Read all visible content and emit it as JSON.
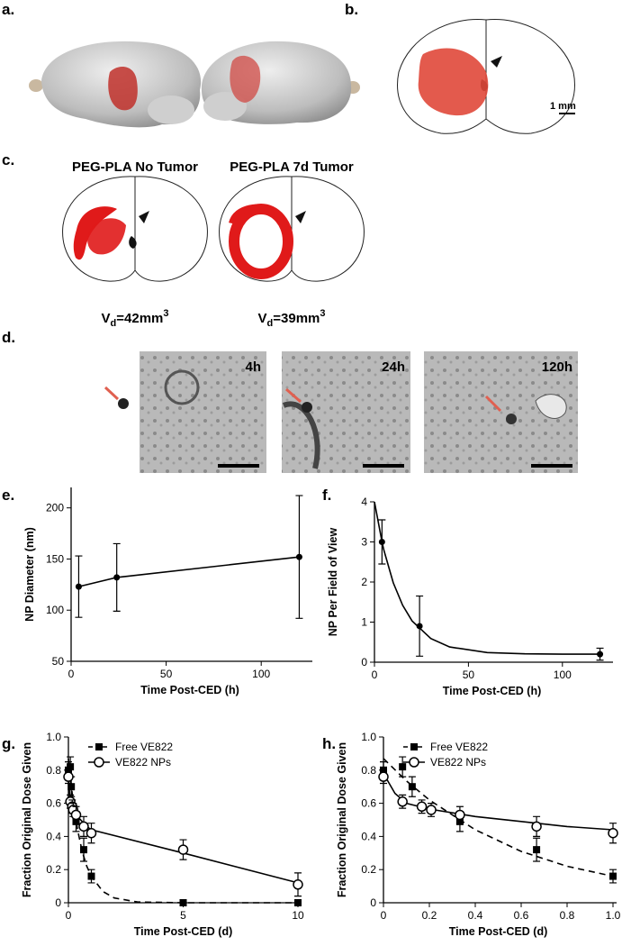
{
  "figure": {
    "panel_labels": [
      "a.",
      "b.",
      "c.",
      "d.",
      "e.",
      "f.",
      "g.",
      "h."
    ],
    "scale_bar": "1 mm",
    "c_titles": [
      "PEG-PLA No Tumor",
      "PEG-PLA 7d Tumor"
    ],
    "c_volumes": [
      [
        "V",
        "d",
        "=42mm",
        "3"
      ],
      [
        "V",
        "d",
        "=39mm",
        "3"
      ]
    ],
    "d_times": [
      "4h",
      "24h",
      "120h"
    ]
  },
  "chart_data": [
    {
      "type": "line",
      "xlabel": "Time Post-CED (h)",
      "ylabel": "NP Diameter (nm)",
      "xlim": [
        0,
        125
      ],
      "xticks": [
        0,
        50,
        100
      ],
      "ylim": [
        50,
        220
      ],
      "yticks": [
        50,
        100,
        150,
        200
      ],
      "series": [
        {
          "x": [
            4,
            24,
            120
          ],
          "values": [
            123,
            132,
            152
          ],
          "errors": [
            30,
            33,
            60
          ],
          "marker": "dot",
          "color": "#000000",
          "connect": true
        }
      ],
      "fits": []
    },
    {
      "type": "line",
      "xlabel": "Time Post-CED (h)",
      "ylabel": "NP Per Field of View",
      "xlim": [
        0,
        125
      ],
      "xticks": [
        0,
        50,
        100
      ],
      "ylim": [
        0,
        4
      ],
      "yticks": [
        0,
        1,
        2,
        3,
        4
      ],
      "series": [
        {
          "x": [
            4,
            24,
            120
          ],
          "values": [
            3.0,
            0.9,
            0.2
          ],
          "errors": [
            0.55,
            0.75,
            0.15
          ],
          "marker": "dot",
          "color": "#000000",
          "connect": false
        }
      ],
      "fits": [
        {
          "x": [
            0,
            4,
            5,
            10,
            15,
            20,
            30,
            40,
            60,
            80,
            100,
            120
          ],
          "values": [
            4.0,
            3.0,
            2.8,
            1.98,
            1.42,
            1.03,
            0.59,
            0.38,
            0.24,
            0.21,
            0.2,
            0.2
          ],
          "dashed": false
        }
      ]
    },
    {
      "type": "line",
      "xlabel": "Time Post-CED (d)",
      "ylabel": "Fraction Original Dose Given",
      "xlim": [
        0,
        10
      ],
      "xticks": [
        0,
        5,
        10
      ],
      "ylim": [
        0,
        1
      ],
      "yticks": [
        0,
        0.2,
        0.4,
        0.6,
        0.8,
        {
          "value": 1,
          "label": "1.0"
        }
      ],
      "legend": "upper left",
      "series": [
        {
          "name": "Free VE822",
          "x": [
            0,
            0.083,
            0.125,
            0.333,
            0.667,
            1,
            5,
            10
          ],
          "values": [
            0.8,
            0.82,
            0.7,
            0.49,
            0.32,
            0.16,
            0,
            0
          ],
          "errors": [
            0.05,
            0.06,
            0.06,
            0.06,
            0.07,
            0.04,
            0.01,
            0.01
          ],
          "marker": "square",
          "color": "#000000",
          "connect": false,
          "dashed": true
        },
        {
          "name": "VE822 NPs",
          "x": [
            0,
            0.083,
            0.167,
            0.208,
            0.333,
            0.667,
            1,
            5,
            10
          ],
          "values": [
            0.76,
            0.61,
            0.58,
            0.56,
            0.53,
            0.46,
            0.42,
            0.32,
            0.11
          ],
          "errors": [
            0.04,
            0.04,
            0.04,
            0.04,
            0.05,
            0.06,
            0.06,
            0.06,
            0.07
          ],
          "marker": "circle",
          "color": "#000000",
          "connect": false,
          "dashed": false
        }
      ],
      "fits": [
        {
          "x": [
            0,
            0.1,
            0.2,
            0.4,
            0.6,
            0.8,
            1,
            1.5,
            2,
            3,
            5,
            10
          ],
          "values": [
            0.87,
            0.735,
            0.62,
            0.44,
            0.31,
            0.22,
            0.16,
            0.068,
            0.029,
            0.005,
            0,
            0
          ],
          "dashed": true
        },
        {
          "x": [
            0,
            0.05,
            0.1,
            0.2,
            0.4,
            0.6,
            0.8,
            1,
            5,
            10
          ],
          "values": [
            0.78,
            0.66,
            0.6,
            0.565,
            0.52,
            0.49,
            0.46,
            0.44,
            0.3,
            0.12
          ],
          "dashed": false
        }
      ]
    },
    {
      "type": "line",
      "xlabel": "Time Post-CED (d)",
      "ylabel": "Fraction Original Dose Given",
      "xlim": [
        0,
        1
      ],
      "xticks": [
        0,
        0.2,
        0.4,
        0.6,
        0.8,
        {
          "value": 1,
          "label": "1.0"
        }
      ],
      "ylim": [
        0,
        1
      ],
      "yticks": [
        0,
        0.2,
        0.4,
        0.6,
        0.8,
        {
          "value": 1,
          "label": "1.0"
        }
      ],
      "legend": "upper left",
      "series": [
        {
          "name": "Free VE822",
          "x": [
            0,
            0.083,
            0.125,
            0.333,
            0.667,
            1
          ],
          "values": [
            0.8,
            0.82,
            0.7,
            0.49,
            0.32,
            0.16
          ],
          "errors": [
            0.05,
            0.06,
            0.06,
            0.06,
            0.07,
            0.04
          ],
          "marker": "square",
          "color": "#000000",
          "connect": false,
          "dashed": true
        },
        {
          "name": "VE822 NPs",
          "x": [
            0,
            0.083,
            0.167,
            0.208,
            0.333,
            0.667,
            1
          ],
          "values": [
            0.76,
            0.61,
            0.58,
            0.56,
            0.53,
            0.46,
            0.42
          ],
          "errors": [
            0.04,
            0.04,
            0.04,
            0.04,
            0.05,
            0.06,
            0.06
          ],
          "marker": "circle",
          "color": "#000000",
          "connect": false,
          "dashed": false
        }
      ],
      "fits": [
        {
          "x": [
            0,
            0.1,
            0.2,
            0.4,
            0.6,
            0.8,
            1
          ],
          "values": [
            0.87,
            0.735,
            0.62,
            0.44,
            0.31,
            0.22,
            0.16
          ],
          "dashed": true
        },
        {
          "x": [
            0,
            0.05,
            0.1,
            0.2,
            0.4,
            0.6,
            0.8,
            1
          ],
          "values": [
            0.78,
            0.66,
            0.6,
            0.565,
            0.52,
            0.49,
            0.46,
            0.44
          ],
          "dashed": false
        }
      ]
    }
  ]
}
